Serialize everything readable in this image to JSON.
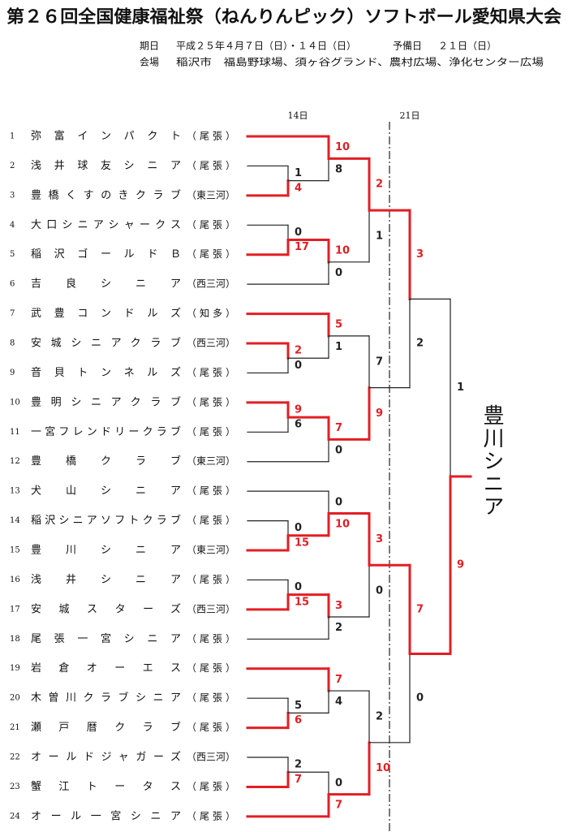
{
  "title": "第２６回全国健康福祉祭（ねんりんピック）ソフトボール愛知県大会",
  "schedule": {
    "date_label": "期日",
    "date": "平成２５年４月７日（日）・１４日（日）",
    "reserve_label": "予備日",
    "reserve": "２１日（日）",
    "venue_label": "会場",
    "venue": "稲沢市　福島野球場、須ヶ谷グランド、農村広場、浄化センター広場"
  },
  "day_labels": [
    "14日",
    "21日"
  ],
  "teams": [
    {
      "no": 1,
      "name": "弥富インパクト",
      "region": "（尾張）"
    },
    {
      "no": 2,
      "name": "浅井球友シニア",
      "region": "（尾張）"
    },
    {
      "no": 3,
      "name": "豊橋くすのきクラブ",
      "region": "（東三河）"
    },
    {
      "no": 4,
      "name": "大口シニアシャークス",
      "region": "（尾張）"
    },
    {
      "no": 5,
      "name": "稲沢ゴールドＢ",
      "region": "（尾張）"
    },
    {
      "no": 6,
      "name": "吉良シニア",
      "region": "（西三河）"
    },
    {
      "no": 7,
      "name": "武豊コンドルズ",
      "region": "（知多）"
    },
    {
      "no": 8,
      "name": "安城シニアクラブ",
      "region": "（西三河）"
    },
    {
      "no": 9,
      "name": "音貝トンネルズ",
      "region": "（尾張）"
    },
    {
      "no": 10,
      "name": "豊明シニアクラブ",
      "region": "（尾張）"
    },
    {
      "no": 11,
      "name": "一宮フレンドリークラブ",
      "region": "（尾張）"
    },
    {
      "no": 12,
      "name": "豊橋クラブ",
      "region": "（東三河）"
    },
    {
      "no": 13,
      "name": "犬山シニア",
      "region": "（尾張）"
    },
    {
      "no": 14,
      "name": "稲沢シニアソフトクラブ",
      "region": "（尾張）"
    },
    {
      "no": 15,
      "name": "豊川シニア",
      "region": "（東三河）"
    },
    {
      "no": 16,
      "name": "浅井シニア",
      "region": "（尾張）"
    },
    {
      "no": 17,
      "name": "安城スターズ",
      "region": "（西三河）"
    },
    {
      "no": 18,
      "name": "尾張一宮シニア",
      "region": "（尾張）"
    },
    {
      "no": 19,
      "name": "岩倉オーエス",
      "region": "（尾張）"
    },
    {
      "no": 20,
      "name": "木曽川クラブシニア",
      "region": "（尾張）"
    },
    {
      "no": 21,
      "name": "瀬戸暦クラブ",
      "region": "（尾張）"
    },
    {
      "no": 22,
      "name": "オールドジャガーズ",
      "region": "（西三河）"
    },
    {
      "no": 23,
      "name": "蟹江トータス",
      "region": "（尾張）"
    },
    {
      "no": 24,
      "name": "オール一宮シニア",
      "region": "（尾張）"
    }
  ],
  "rounds": [
    [
      {
        "scores": [
          1,
          4
        ]
      },
      {
        "scores": [
          0,
          17
        ]
      },
      {
        "scores": [
          2,
          0
        ]
      },
      {
        "scores": [
          9,
          6
        ]
      },
      {
        "scores": [
          0,
          15
        ]
      },
      {
        "scores": [
          0,
          15
        ]
      },
      {
        "scores": [
          5,
          6
        ]
      },
      {
        "scores": [
          2,
          7
        ]
      }
    ],
    [
      {
        "scores": [
          10,
          8
        ]
      },
      {
        "scores": [
          10,
          0
        ]
      },
      {
        "scores": [
          5,
          1
        ]
      },
      {
        "scores": [
          7,
          0
        ]
      },
      {
        "scores": [
          0,
          10
        ]
      },
      {
        "scores": [
          3,
          2
        ]
      },
      {
        "scores": [
          7,
          4
        ]
      },
      {
        "scores": [
          0,
          7
        ]
      }
    ],
    [
      {
        "scores": [
          2,
          1
        ]
      },
      {
        "scores": [
          7,
          9
        ]
      },
      {
        "scores": [
          3,
          0
        ]
      },
      {
        "scores": [
          2,
          10
        ]
      }
    ],
    [
      {
        "scores": [
          3,
          2
        ]
      },
      {
        "scores": [
          7,
          0
        ]
      }
    ],
    [
      {
        "scores": [
          1,
          9
        ]
      }
    ]
  ],
  "champion": "豊川シニア"
}
